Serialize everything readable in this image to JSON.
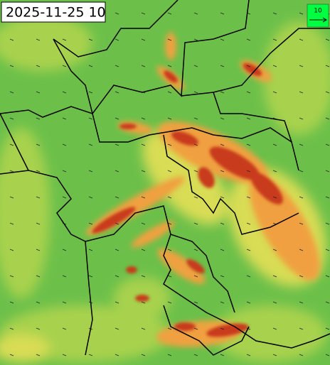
{
  "timestamp": "2025-11-25 10",
  "wind_legend": {
    "label": "10"
  }
}
